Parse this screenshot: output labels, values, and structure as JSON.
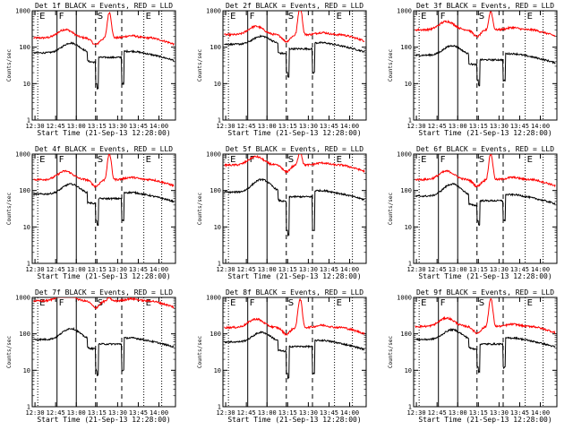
{
  "chart_data": {
    "type": "line",
    "layout": "3x3 grid",
    "xlabel": "Start Time (21-Sep-13 12:28:00)",
    "ylabel": "Counts/sec",
    "x_ticks": [
      "12:30",
      "12:45",
      "13:00",
      "13:15",
      "13:30",
      "13:45",
      "14:00"
    ],
    "x_tick_minutes": [
      0,
      15,
      30,
      45,
      60,
      75,
      90
    ],
    "x_range_minutes": [
      -2,
      102
    ],
    "y_scale": "log",
    "y_ticks": [
      "1",
      "10",
      "100",
      "1000"
    ],
    "ylim": [
      1,
      1000
    ],
    "colors": {
      "events": "#000000",
      "lld": "#ff0000",
      "axes": "#000000"
    },
    "marker_labels": [
      "E",
      "F",
      "S",
      "E"
    ],
    "vertical_lines": [
      {
        "minute": 2,
        "style": "dotted",
        "label": "E"
      },
      {
        "minute": 16,
        "style": "solid",
        "label": "F"
      },
      {
        "minute": 30,
        "style": "solid",
        "label": ""
      },
      {
        "minute": 44,
        "style": "dashed",
        "label": "S"
      },
      {
        "minute": 63,
        "style": "dashed",
        "label": ""
      },
      {
        "minute": 79,
        "style": "dotted",
        "label": "E"
      },
      {
        "minute": 92,
        "style": "dotted",
        "label": ""
      }
    ],
    "panels": [
      {
        "title": "Det 1f BLACK = Events, RED = LLD",
        "lld_base": 180,
        "lld_peak": 900,
        "ev_base": 70,
        "ev_peak": 130,
        "ev_dip": 10
      },
      {
        "title": "Det 2f BLACK = Events, RED = LLD",
        "lld_base": 220,
        "lld_peak": 1300,
        "ev_base": 120,
        "ev_peak": 200,
        "ev_dip": 20
      },
      {
        "title": "Det 3f BLACK = Events, RED = LLD",
        "lld_base": 300,
        "lld_peak": 950,
        "ev_base": 60,
        "ev_peak": 110,
        "ev_dip": 12
      },
      {
        "title": "Det 4f BLACK = Events, RED = LLD",
        "lld_base": 200,
        "lld_peak": 1000,
        "ev_base": 80,
        "ev_peak": 150,
        "ev_dip": 15
      },
      {
        "title": "Det 5f BLACK = Events, RED = LLD",
        "lld_base": 500,
        "lld_peak": 1200,
        "ev_base": 90,
        "ev_peak": 200,
        "ev_dip": 8
      },
      {
        "title": "Det 6f BLACK = Events, RED = LLD",
        "lld_base": 200,
        "lld_peak": 1000,
        "ev_base": 70,
        "ev_peak": 150,
        "ev_dip": 15
      },
      {
        "title": "Det 7f BLACK = Events, RED = LLD",
        "lld_base": 800,
        "lld_peak": 1000,
        "ev_base": 70,
        "ev_peak": 140,
        "ev_dip": 10
      },
      {
        "title": "Det 8f BLACK = Events, RED = LLD",
        "lld_base": 150,
        "lld_peak": 900,
        "ev_base": 60,
        "ev_peak": 110,
        "ev_dip": 8
      },
      {
        "title": "Det 9f BLACK = Events, RED = LLD",
        "lld_base": 160,
        "lld_peak": 900,
        "ev_base": 70,
        "ev_peak": 130,
        "ev_dip": 12
      }
    ]
  }
}
